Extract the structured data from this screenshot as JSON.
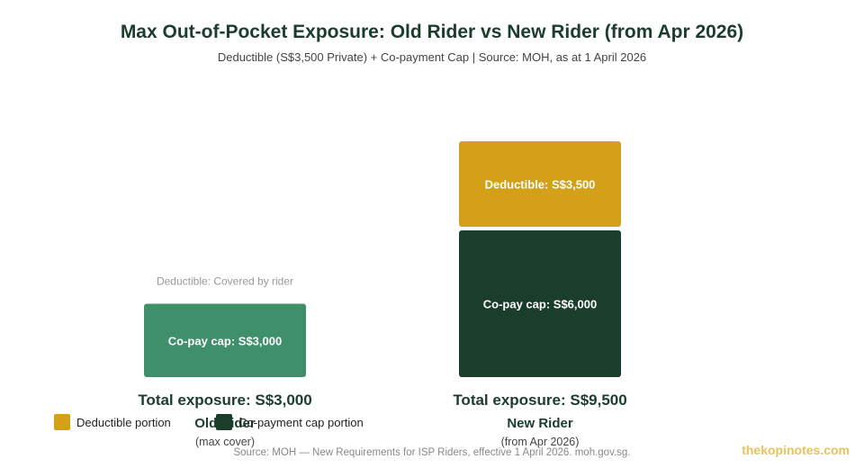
{
  "header": {
    "title": "Max Out-of-Pocket Exposure: Old Rider vs New Rider (from Apr 2026)",
    "subtitle": "Deductible (S$3,500 Private) + Co-payment Cap | Source: MOH, as at 1 April 2026"
  },
  "chart_data": {
    "type": "bar",
    "stacked": true,
    "categories": [
      "Old Rider",
      "New Rider"
    ],
    "category_sublabels": [
      "(max cover)",
      "(from Apr 2026)"
    ],
    "series": [
      {
        "name": "Co-payment cap portion",
        "values": [
          3000,
          6000
        ],
        "colors": [
          "#3f8f6b",
          "#1b3d2b"
        ],
        "labels": [
          "Co-pay cap: S$3,000",
          "Co-pay cap: S$6,000"
        ]
      },
      {
        "name": "Deductible portion",
        "values": [
          0,
          3500
        ],
        "colors": [
          "#d4a017",
          "#d4a017"
        ],
        "labels": [
          "Deductible: Covered by rider",
          "Deductible: S$3,500"
        ]
      }
    ],
    "totals": [
      "Total exposure: S$3,000",
      "Total exposure: S$9,500"
    ],
    "legend": [
      {
        "label": "Deductible portion",
        "color": "#d4a017"
      },
      {
        "label": "Co-payment cap portion",
        "color": "#1b3d2b"
      }
    ],
    "ylim": [
      0,
      9500
    ],
    "grid": false,
    "legend_position": "bottom-left"
  },
  "footer": {
    "source": "Source: MOH — New Requirements for ISP Riders, effective 1 April 2026. moh.gov.sg.",
    "brand": "thekopinotes.com"
  }
}
